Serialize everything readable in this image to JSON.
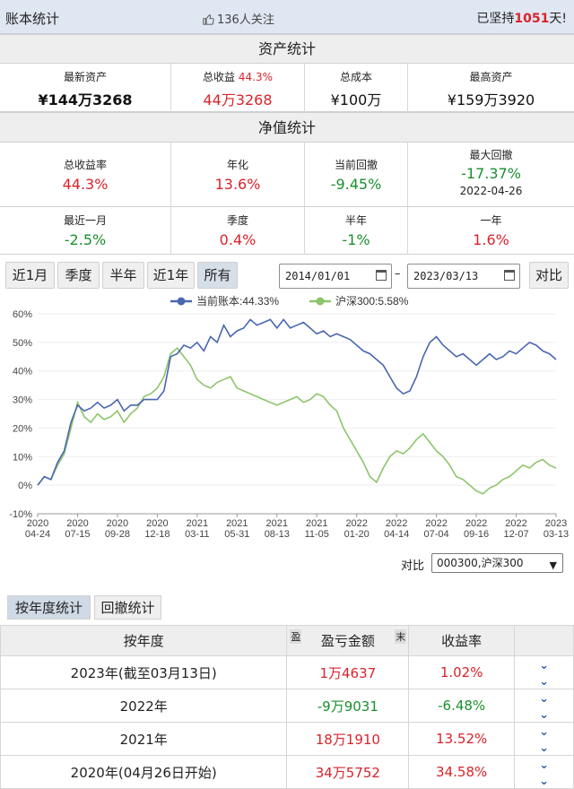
{
  "header": {
    "title": "账本统计",
    "likes": "136人关注",
    "days_prefix": "已坚持",
    "days": "1051",
    "days_suffix": "天!"
  },
  "asset": {
    "title": "资产统计",
    "latest_label": "最新资产",
    "latest_value": "¥144万3268",
    "profit_label": "总收益",
    "profit_pct": "44.3%",
    "profit_value": "44万3268",
    "cost_label": "总成本",
    "cost_value": "¥100万",
    "max_label": "最高资产",
    "max_value": "¥159万3920"
  },
  "nav": {
    "title": "净值统计",
    "row1": [
      {
        "label": "总收益率",
        "value": "44.3%",
        "color": "red"
      },
      {
        "label": "年化",
        "value": "13.6%",
        "color": "red"
      },
      {
        "label": "当前回撤",
        "value": "-9.45%",
        "color": "green"
      },
      {
        "label": "最大回撤",
        "value": "-17.37%",
        "color": "green",
        "date": "2022-04-26"
      }
    ],
    "row2": [
      {
        "label": "最近一月",
        "value": "-2.5%",
        "color": "green"
      },
      {
        "label": "季度",
        "value": "0.4%",
        "color": "red"
      },
      {
        "label": "半年",
        "value": "-1%",
        "color": "green"
      },
      {
        "label": "一年",
        "value": "1.6%",
        "color": "red"
      }
    ]
  },
  "range_buttons": [
    "近1月",
    "季度",
    "半年",
    "近1年",
    "所有"
  ],
  "active_range": "所有",
  "date_from": "2014/01/01",
  "date_sep": "–",
  "date_to": "2023/03/13",
  "compare_button": "对比",
  "compare_label": "对比",
  "compare_select": "000300,沪深300",
  "tabs": [
    "按年度统计",
    "回撤统计"
  ],
  "table": {
    "headers": [
      "按年度",
      "盈亏金额",
      "收益率"
    ],
    "tag_left": "盈",
    "tag_right": "末",
    "rows": [
      {
        "year": "2023年(截至03月13日)",
        "amount": "1万4637",
        "rate": "1.02%",
        "color": "red"
      },
      {
        "year": "2022年",
        "amount": "-9万9031",
        "rate": "-6.48%",
        "color": "green"
      },
      {
        "year": "2021年",
        "amount": "18万1910",
        "rate": "13.52%",
        "color": "red"
      },
      {
        "year": "2020年(04月26日开始)",
        "amount": "34万5752",
        "rate": "34.58%",
        "color": "red"
      }
    ]
  },
  "chart_data": {
    "type": "line",
    "legend": [
      {
        "name": "当前账本:44.33%",
        "color": "#4a67b0"
      },
      {
        "name": "沪深300:5.58%",
        "color": "#8cc56a"
      }
    ],
    "ylim": [
      -10,
      60
    ],
    "yticks": [
      "-10%",
      "0%",
      "10%",
      "20%",
      "30%",
      "40%",
      "50%",
      "60%"
    ],
    "xticks": [
      [
        "2020",
        "04-24"
      ],
      [
        "2020",
        "07-15"
      ],
      [
        "2020",
        "09-28"
      ],
      [
        "2020",
        "12-18"
      ],
      [
        "2021",
        "03-11"
      ],
      [
        "2021",
        "05-31"
      ],
      [
        "2021",
        "08-13"
      ],
      [
        "2021",
        "11-05"
      ],
      [
        "2022",
        "01-20"
      ],
      [
        "2022",
        "04-14"
      ],
      [
        "2022",
        "07-04"
      ],
      [
        "2022",
        "09-16"
      ],
      [
        "2022",
        "12-07"
      ],
      [
        "2023",
        "03-13"
      ]
    ],
    "series": [
      {
        "name": "当前账本",
        "color": "#4a67b0",
        "values": [
          0,
          3,
          2,
          8,
          12,
          22,
          28,
          26,
          27,
          29,
          27,
          28,
          30,
          26,
          28,
          28,
          30,
          30,
          30,
          33,
          45,
          46,
          49,
          48,
          50,
          47,
          52,
          50,
          56,
          52,
          54,
          55,
          58,
          56,
          57,
          58,
          55,
          58,
          55,
          56,
          57,
          55,
          53,
          54,
          52,
          53,
          52,
          51,
          49,
          47,
          46,
          44,
          42,
          38,
          34,
          32,
          33,
          38,
          45,
          50,
          52,
          49,
          47,
          45,
          46,
          44,
          42,
          44,
          46,
          44,
          45,
          47,
          46,
          48,
          50,
          49,
          47,
          46,
          44
        ]
      },
      {
        "name": "沪深300",
        "color": "#8cc56a",
        "values": [
          0,
          3,
          2,
          7,
          11,
          20,
          29,
          24,
          22,
          25,
          23,
          24,
          26,
          22,
          25,
          27,
          31,
          32,
          34,
          38,
          46,
          48,
          45,
          42,
          37,
          35,
          34,
          36,
          37,
          38,
          34,
          33,
          32,
          31,
          30,
          29,
          28,
          29,
          30,
          31,
          29,
          30,
          32,
          31,
          28,
          26,
          20,
          16,
          12,
          8,
          3,
          1,
          6,
          10,
          12,
          11,
          13,
          16,
          18,
          15,
          12,
          10,
          7,
          3,
          2,
          0,
          -2,
          -3,
          -1,
          0,
          2,
          3,
          5,
          7,
          6,
          8,
          9,
          7,
          6
        ]
      }
    ]
  }
}
